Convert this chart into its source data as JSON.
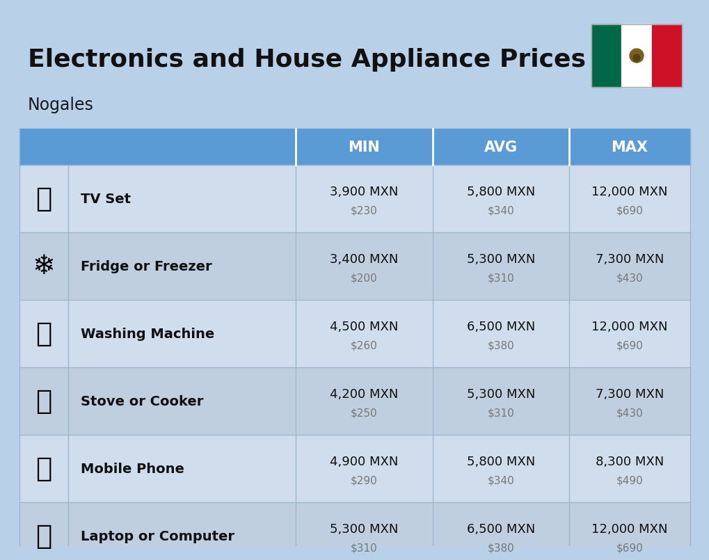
{
  "title": "Electronics and House Appliance Prices",
  "subtitle": "Nogales",
  "background_color": "#b8d0e8",
  "header_color": "#5b9bd5",
  "header_text_color": "#ffffff",
  "row_colors": [
    "#cfdded",
    "#bfcfe0"
  ],
  "divider_color": "#9ab5cc",
  "columns": [
    "MIN",
    "AVG",
    "MAX"
  ],
  "items": [
    {
      "name": "TV Set",
      "min_mxn": "3,900 MXN",
      "min_usd": "$230",
      "avg_mxn": "5,800 MXN",
      "avg_usd": "$340",
      "max_mxn": "12,000 MXN",
      "max_usd": "$690"
    },
    {
      "name": "Fridge or Freezer",
      "min_mxn": "3,400 MXN",
      "min_usd": "$200",
      "avg_mxn": "5,300 MXN",
      "avg_usd": "$310",
      "max_mxn": "7,300 MXN",
      "max_usd": "$430"
    },
    {
      "name": "Washing Machine",
      "min_mxn": "4,500 MXN",
      "min_usd": "$260",
      "avg_mxn": "6,500 MXN",
      "avg_usd": "$380",
      "max_mxn": "12,000 MXN",
      "max_usd": "$690"
    },
    {
      "name": "Stove or Cooker",
      "min_mxn": "4,200 MXN",
      "min_usd": "$250",
      "avg_mxn": "5,300 MXN",
      "avg_usd": "$310",
      "max_mxn": "7,300 MXN",
      "max_usd": "$430"
    },
    {
      "name": "Mobile Phone",
      "min_mxn": "4,900 MXN",
      "min_usd": "$290",
      "avg_mxn": "5,800 MXN",
      "avg_usd": "$340",
      "max_mxn": "8,300 MXN",
      "max_usd": "$490"
    },
    {
      "name": "Laptop or Computer",
      "min_mxn": "5,300 MXN",
      "min_usd": "$310",
      "avg_mxn": "6,500 MXN",
      "avg_usd": "$380",
      "max_mxn": "12,000 MXN",
      "max_usd": "$690"
    }
  ],
  "item_icons": [
    "📺",
    "❄️",
    "📦",
    "🔥",
    "📱",
    "💻"
  ],
  "title_fontsize": 26,
  "subtitle_fontsize": 17,
  "header_fontsize": 15,
  "item_name_fontsize": 14,
  "value_fontsize": 13,
  "usd_fontsize": 11
}
